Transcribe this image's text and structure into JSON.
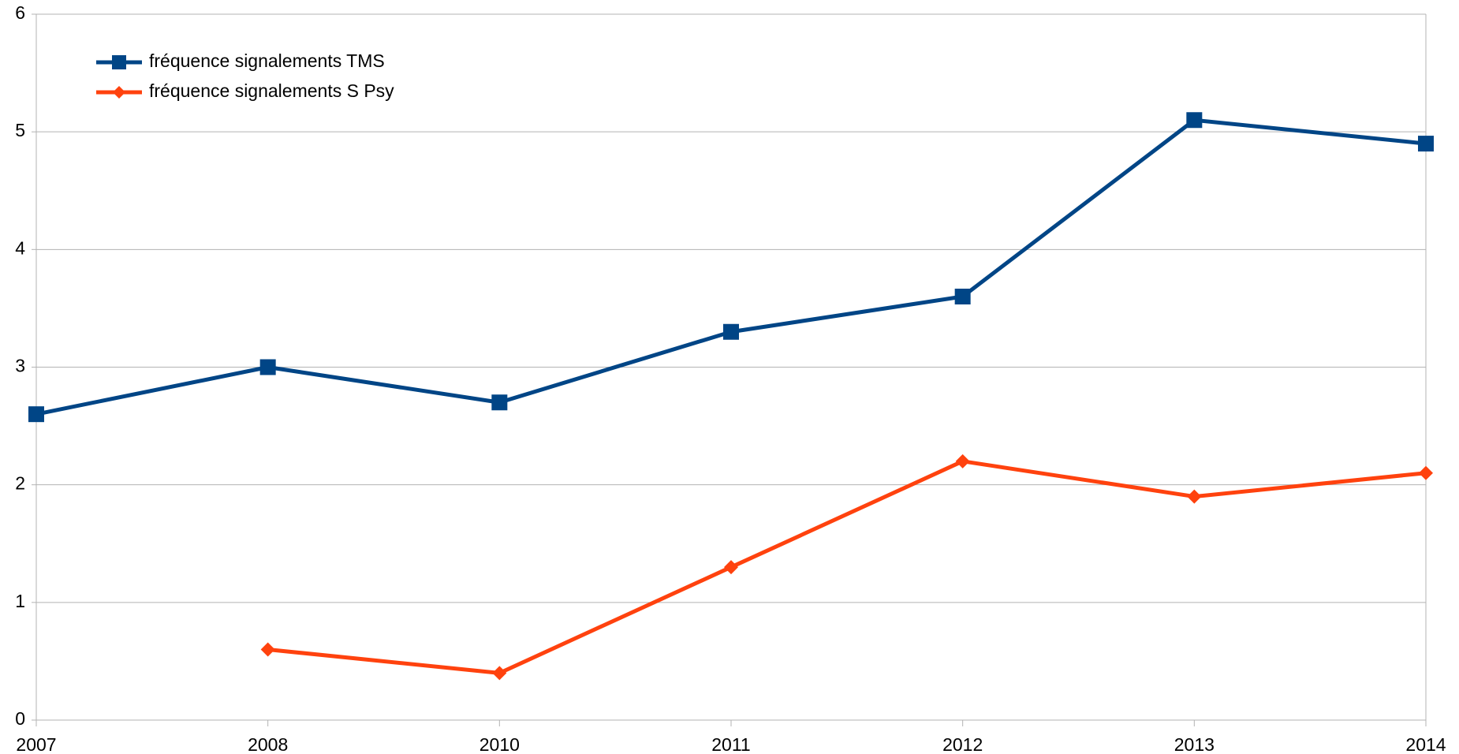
{
  "chart_data": {
    "type": "line",
    "categories": [
      "2007",
      "2008",
      "2010",
      "2011",
      "2012",
      "2013",
      "2014"
    ],
    "series": [
      {
        "name": "fréquence signalements TMS",
        "color": "#004586",
        "marker": "square",
        "values": [
          2.6,
          3.0,
          2.7,
          3.3,
          3.6,
          5.1,
          4.9
        ]
      },
      {
        "name": "fréquence signalements S Psy",
        "color": "#ff420e",
        "marker": "diamond",
        "values": [
          null,
          0.6,
          0.4,
          1.3,
          2.2,
          1.9,
          2.1
        ]
      }
    ],
    "ylim": [
      0,
      6
    ],
    "yticks": [
      0,
      1,
      2,
      3,
      4,
      5,
      6
    ],
    "grid": true,
    "legend": "top-left"
  }
}
